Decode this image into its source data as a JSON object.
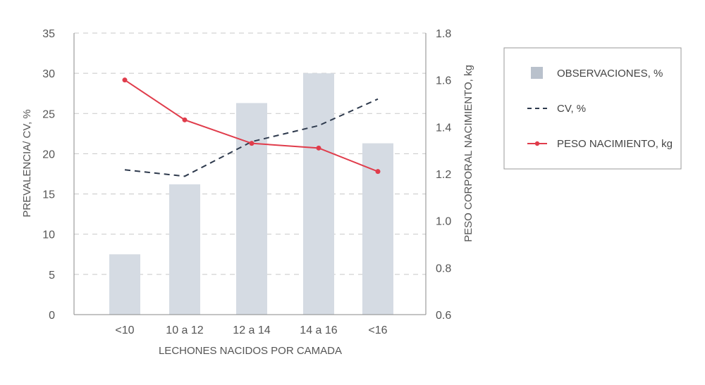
{
  "chart_data": {
    "type": "bar",
    "title": "",
    "xlabel": "LECHONES NACIDOS POR CAMADA",
    "ylabel": "PREVALENCIA/ CV, %",
    "y2label": "PESO CORPORAL NACIMIENTO, kg",
    "categories": [
      "<10",
      "10 a 12",
      "12 a 14",
      "14 a 16",
      "<16"
    ],
    "ylim": [
      0,
      35
    ],
    "yticks": [
      0,
      5,
      10,
      15,
      20,
      25,
      30,
      35
    ],
    "y2lim": [
      0.6,
      1.8
    ],
    "y2ticks": [
      "0.6",
      "0.8",
      "1.0",
      "1.2",
      "1.4",
      "1.6",
      "1.8"
    ],
    "grid": true,
    "legend_position": "right",
    "series": [
      {
        "name": "OBSERVACIONES, %",
        "kind": "bar",
        "axis": "left",
        "color": "#d5dbe3",
        "values": [
          7.5,
          16.2,
          26.3,
          30.0,
          21.3
        ]
      },
      {
        "name": "CV, %",
        "kind": "line",
        "style": "dashed",
        "axis": "left",
        "color": "#2e3a4d",
        "values": [
          18.0,
          17.2,
          21.5,
          23.5,
          26.8
        ]
      },
      {
        "name": "PESO NACIMIENTO, kg",
        "kind": "line",
        "style": "solid-markers",
        "axis": "right",
        "color": "#e03c4b",
        "values": [
          1.6,
          1.43,
          1.33,
          1.31,
          1.21
        ]
      }
    ]
  }
}
